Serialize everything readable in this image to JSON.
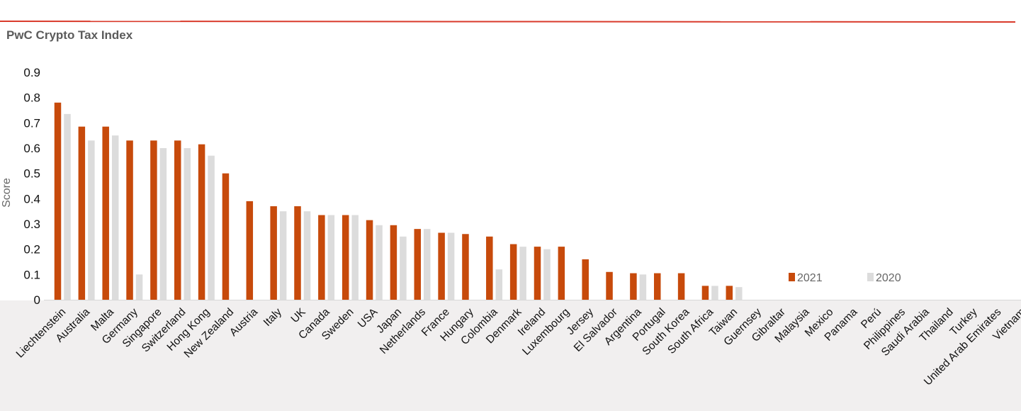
{
  "title": "PwC Crypto Tax Index",
  "colors": {
    "accent_line": "#d93a2b",
    "s2021": "#c74a0b",
    "s2020": "#dcdcdc"
  },
  "chart_data": {
    "type": "bar",
    "title": "PwC Crypto Tax Index",
    "xlabel": "",
    "ylabel": "Score",
    "ylim": [
      0,
      0.9
    ],
    "yticks": [
      "0",
      "0.1",
      "0.2",
      "0.3",
      "0.4",
      "0.5",
      "0.6",
      "0.7",
      "0.8",
      "0.9"
    ],
    "grid": false,
    "legend_position": "lower-right",
    "categories": [
      "Liechtenstein",
      "Australia",
      "Malta",
      "Germany",
      "Singapore",
      "Switzerland",
      "Hong Kong",
      "New Zealand",
      "Austria",
      "Italy",
      "UK",
      "Canada",
      "Sweden",
      "USA",
      "Japan",
      "Netherlands",
      "France",
      "Hungary",
      "Colombia",
      "Denmark",
      "Ireland",
      "Luxembourg",
      "Jersey",
      "El Salvador",
      "Argentina",
      "Portugal",
      "South Korea",
      "South Africa",
      "Taiwan",
      "Guernsey",
      "Gibraltar",
      "Malaysia",
      "Mexico",
      "Panama",
      "Perú",
      "Philippines",
      "Saudi Arabia",
      "Thailand",
      "Turkey",
      "United Arab Emirates",
      "Vietnam"
    ],
    "series": [
      {
        "name": "2021",
        "color": "#c74a0b",
        "values": [
          0.78,
          0.685,
          0.685,
          0.63,
          0.63,
          0.63,
          0.615,
          0.5,
          0.39,
          0.37,
          0.37,
          0.335,
          0.335,
          0.315,
          0.295,
          0.28,
          0.265,
          0.26,
          0.25,
          0.22,
          0.21,
          0.21,
          0.16,
          0.11,
          0.105,
          0.105,
          0.105,
          0.055,
          0.055,
          0,
          0,
          0,
          0,
          0,
          0,
          0,
          0,
          0,
          0,
          0,
          0
        ]
      },
      {
        "name": "2020",
        "color": "#dcdcdc",
        "values": [
          0.735,
          0.63,
          0.65,
          0.1,
          0.6,
          0.6,
          0.57,
          0,
          0,
          0.35,
          0.35,
          0.335,
          0.335,
          0.295,
          0.25,
          0.28,
          0.265,
          0,
          0.12,
          0.21,
          0.2,
          0,
          0,
          0,
          0.1,
          0,
          0,
          0.055,
          0.05,
          0,
          0,
          0,
          0,
          0,
          0,
          0,
          0,
          0,
          0,
          0,
          0
        ]
      }
    ]
  }
}
